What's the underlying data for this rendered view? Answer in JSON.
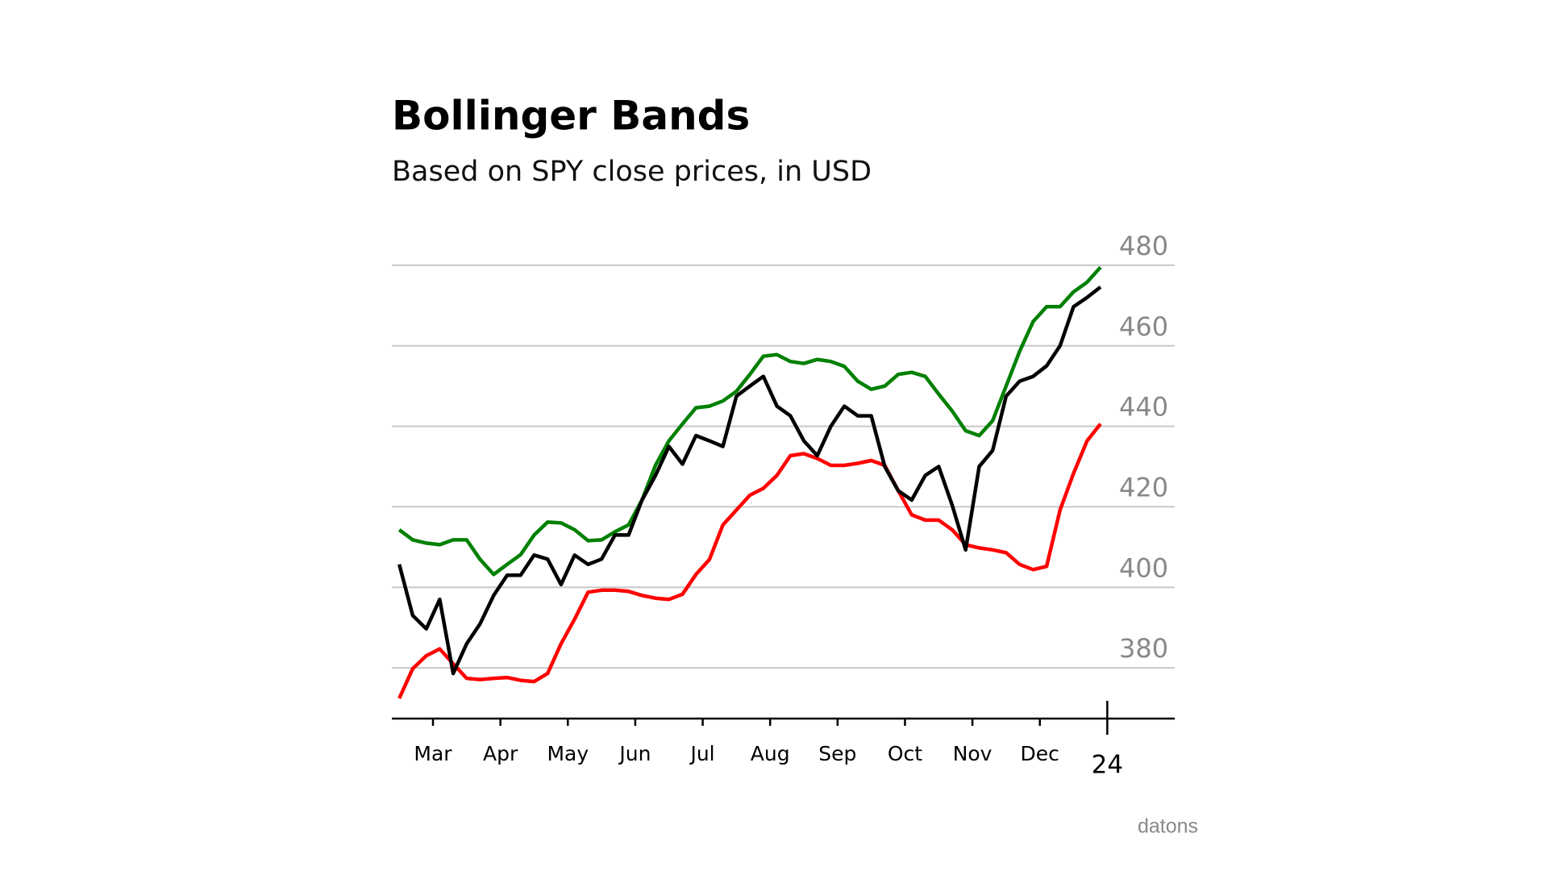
{
  "chart_data": {
    "type": "line",
    "title": "Bollinger Bands",
    "subtitle": "Based on SPY close prices, in USD",
    "source": "datons",
    "x": [
      2.5,
      2.7,
      2.9,
      3.1,
      3.3,
      3.5,
      3.7,
      3.9,
      4.1,
      4.3,
      4.5,
      4.7,
      4.9,
      5.1,
      5.3,
      5.5,
      5.7,
      5.9,
      6.1,
      6.3,
      6.5,
      6.7,
      6.9,
      7.1,
      7.3,
      7.5,
      7.7,
      7.9,
      8.1,
      8.3,
      8.5,
      8.7,
      8.9,
      9.1,
      9.3,
      9.5,
      9.7,
      9.9,
      10.1,
      10.3,
      10.5,
      10.7,
      10.9,
      11.1,
      11.3,
      11.5,
      11.7,
      11.9,
      12.1,
      12.3,
      12.5,
      12.7,
      12.9
    ],
    "series": [
      {
        "color": "#008000",
        "values": [
          414.3,
          411.8,
          411,
          410.6,
          411.8,
          411.8,
          406.9,
          403.2,
          405.7,
          408.1,
          413,
          416.2,
          416,
          414.3,
          411.6,
          411.8,
          413.8,
          415.5,
          421.7,
          430.3,
          436.4,
          440.6,
          444.6,
          445,
          446.3,
          448.7,
          452.9,
          457.4,
          457.8,
          456.1,
          455.6,
          456.6,
          456.1,
          454.9,
          451.2,
          449.2,
          450,
          452.9,
          453.4,
          452.4,
          448,
          443.8,
          438.9,
          437.7,
          441.4,
          450,
          458.6,
          466,
          469.7,
          469.7,
          473.4,
          475.8,
          479.5
        ]
      },
      {
        "color": "#ff0000",
        "values": [
          372.4,
          379.8,
          383,
          384.7,
          381,
          377.4,
          377.1,
          377.4,
          377.6,
          376.9,
          376.6,
          378.6,
          386,
          392.1,
          398.8,
          399.3,
          399.3,
          399,
          398,
          397.3,
          397,
          398.3,
          403.2,
          406.9,
          415.5,
          419.2,
          422.9,
          424.6,
          427.8,
          432.7,
          433.2,
          432,
          430.3,
          430.3,
          430.8,
          431.5,
          430.3,
          424,
          418,
          416.7,
          416.7,
          414.3,
          410.6,
          409.8,
          409.3,
          408.6,
          405.7,
          404.4,
          405.2,
          419.2,
          428.3,
          436.4,
          440.6
        ]
      },
      {
        "color": "#000000",
        "values": [
          405.7,
          393,
          389.7,
          397,
          378.6,
          386,
          391,
          398,
          403,
          403,
          408,
          407,
          400.7,
          408,
          405.7,
          407,
          413,
          413,
          421.7,
          427.8,
          435,
          430.6,
          437.7,
          436.4,
          435,
          447.5,
          450,
          452.4,
          445,
          442.6,
          436.4,
          432.7,
          440,
          445,
          442.6,
          442.6,
          430,
          424,
          421.7,
          427.8,
          430,
          420.4,
          409.3,
          430,
          434,
          447.5,
          451.2,
          452.4,
          455,
          460,
          469.7,
          472,
          474.6
        ]
      }
    ],
    "xlim": [
      2.39,
      14.0
    ],
    "xticks": [
      {
        "value": 3,
        "label": "Mar"
      },
      {
        "value": 4,
        "label": "Apr"
      },
      {
        "value": 5,
        "label": "May"
      },
      {
        "value": 6,
        "label": "Jun"
      },
      {
        "value": 7,
        "label": "Jul"
      },
      {
        "value": 8,
        "label": "Aug"
      },
      {
        "value": 9,
        "label": "Sep"
      },
      {
        "value": 10,
        "label": "Oct"
      },
      {
        "value": 11,
        "label": "Nov"
      },
      {
        "value": 12,
        "label": "Dec"
      },
      {
        "value": 13,
        "label": "24"
      }
    ],
    "ylim": [
      367.4,
      488
    ],
    "yticks": [
      380,
      400,
      420,
      440,
      460,
      480
    ],
    "grid": true
  }
}
